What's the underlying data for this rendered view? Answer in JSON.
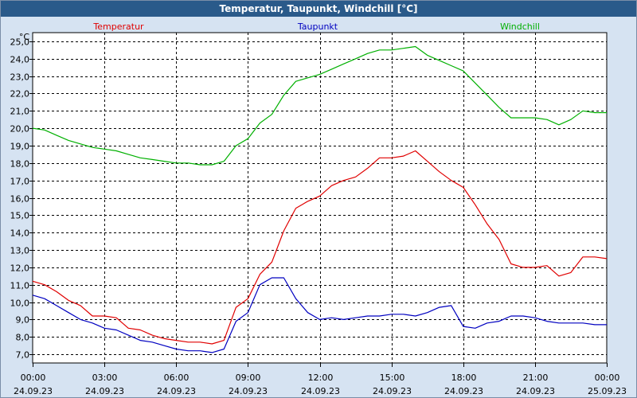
{
  "window": {
    "title": "Temperatur, Taupunkt, Windchill [°C]"
  },
  "chart_data": {
    "type": "line",
    "title": "Temperatur, Taupunkt, Windchill [°C]",
    "ylabel": "°C",
    "xlabel": "",
    "ylim": [
      6.5,
      25.5
    ],
    "xlim": [
      0,
      24
    ],
    "grid": true,
    "y_ticks": [
      "25,0",
      "24,0",
      "23,0",
      "22,0",
      "21,0",
      "20,0",
      "19,0",
      "18,0",
      "17,0",
      "16,0",
      "15,0",
      "14,0",
      "13,0",
      "12,0",
      "11,0",
      "10,0",
      "9,0",
      "8,0",
      "7,0"
    ],
    "y_tick_values": [
      25,
      24,
      23,
      22,
      21,
      20,
      19,
      18,
      17,
      16,
      15,
      14,
      13,
      12,
      11,
      10,
      9,
      8,
      7
    ],
    "x_ticks": [
      {
        "value": 0,
        "time": "00:00",
        "date": "24.09.23"
      },
      {
        "value": 3,
        "time": "03:00",
        "date": "24.09.23"
      },
      {
        "value": 6,
        "time": "06:00",
        "date": "24.09.23"
      },
      {
        "value": 9,
        "time": "09:00",
        "date": "24.09.23"
      },
      {
        "value": 12,
        "time": "12:00",
        "date": "24.09.23"
      },
      {
        "value": 15,
        "time": "15:00",
        "date": "24.09.23"
      },
      {
        "value": 18,
        "time": "18:00",
        "date": "24.09.23"
      },
      {
        "value": 21,
        "time": "21:00",
        "date": "24.09.23"
      },
      {
        "value": 24,
        "time": "00:00",
        "date": "25.09.23"
      }
    ],
    "series": [
      {
        "name": "Temperatur",
        "color": "#e00000",
        "x": [
          0,
          0.5,
          1,
          1.5,
          2,
          2.5,
          3,
          3.5,
          4,
          4.5,
          5,
          5.5,
          6,
          6.5,
          7,
          7.5,
          8,
          8.5,
          9,
          9.5,
          10,
          10.5,
          11,
          11.5,
          12,
          12.5,
          13,
          13.5,
          14,
          14.5,
          15,
          15.5,
          16,
          16.5,
          17,
          17.5,
          18,
          18.5,
          19,
          19.5,
          20,
          20.5,
          21,
          21.5,
          22,
          22.5,
          23,
          23.5,
          24
        ],
        "values": [
          11.2,
          11,
          10.6,
          10.1,
          9.8,
          9.2,
          9.2,
          9.1,
          8.5,
          8.4,
          8.1,
          7.9,
          7.8,
          7.7,
          7.7,
          7.6,
          7.8,
          9.7,
          10.2,
          11.6,
          12.3,
          14.1,
          15.4,
          15.8,
          16.1,
          16.7,
          17,
          17.2,
          17.7,
          18.3,
          18.3,
          18.4,
          18.7,
          18.1,
          17.5,
          17,
          16.6,
          15.6,
          14.5,
          13.6,
          12.2,
          12,
          12,
          12.1,
          11.5,
          11.7,
          12.6,
          12.6,
          12.5
        ]
      },
      {
        "name": "Taupunkt",
        "color": "#0000c0",
        "x": [
          0,
          0.5,
          1,
          1.5,
          2,
          2.5,
          3,
          3.5,
          4,
          4.5,
          5,
          5.5,
          6,
          6.5,
          7,
          7.5,
          8,
          8.5,
          9,
          9.5,
          10,
          10.5,
          11,
          11.5,
          12,
          12.5,
          13,
          13.5,
          14,
          14.5,
          15,
          15.5,
          16,
          16.5,
          17,
          17.5,
          18,
          18.5,
          19,
          19.5,
          20,
          20.5,
          21,
          21.5,
          22,
          22.5,
          23,
          23.5,
          24
        ],
        "values": [
          10.4,
          10.2,
          9.8,
          9.4,
          9,
          8.8,
          8.5,
          8.4,
          8.1,
          7.8,
          7.7,
          7.5,
          7.3,
          7.2,
          7.2,
          7.1,
          7.3,
          8.9,
          9.4,
          11,
          11.4,
          11.4,
          10.2,
          9.4,
          9,
          9.1,
          9,
          9.1,
          9.2,
          9.2,
          9.3,
          9.3,
          9.2,
          9.4,
          9.7,
          9.8,
          8.6,
          8.5,
          8.8,
          8.9,
          9.2,
          9.2,
          9.1,
          8.9,
          8.8,
          8.8,
          8.8,
          8.7,
          8.7
        ]
      },
      {
        "name": "Windchill",
        "color": "#00b000",
        "x": [
          0,
          0.5,
          1,
          1.5,
          2,
          2.5,
          3,
          3.5,
          4,
          4.5,
          5,
          5.5,
          6,
          6.5,
          7,
          7.5,
          8,
          8.5,
          9,
          9.5,
          10,
          10.5,
          11,
          11.5,
          12,
          12.5,
          13,
          13.5,
          14,
          14.5,
          15,
          15.5,
          16,
          16.5,
          17,
          17.5,
          18,
          18.5,
          19,
          19.5,
          20,
          20.5,
          21,
          21.5,
          22,
          22.5,
          23,
          23.5,
          24
        ],
        "values": [
          20,
          19.9,
          19.6,
          19.3,
          19.1,
          18.9,
          18.8,
          18.7,
          18.5,
          18.3,
          18.2,
          18.1,
          18,
          18,
          17.9,
          17.9,
          18.1,
          19,
          19.4,
          20.3,
          20.8,
          21.9,
          22.7,
          22.9,
          23.1,
          23.4,
          23.7,
          24,
          24.3,
          24.5,
          24.5,
          24.6,
          24.7,
          24.2,
          23.9,
          23.6,
          23.3,
          22.6,
          21.9,
          21.2,
          20.6,
          20.6,
          20.6,
          20.5,
          20.2,
          20.5,
          21,
          20.9,
          20.9
        ]
      }
    ],
    "styles": {
      "grid_color": "#000000",
      "plot_bg": "#ffffff",
      "axis_color": "#000000"
    }
  }
}
